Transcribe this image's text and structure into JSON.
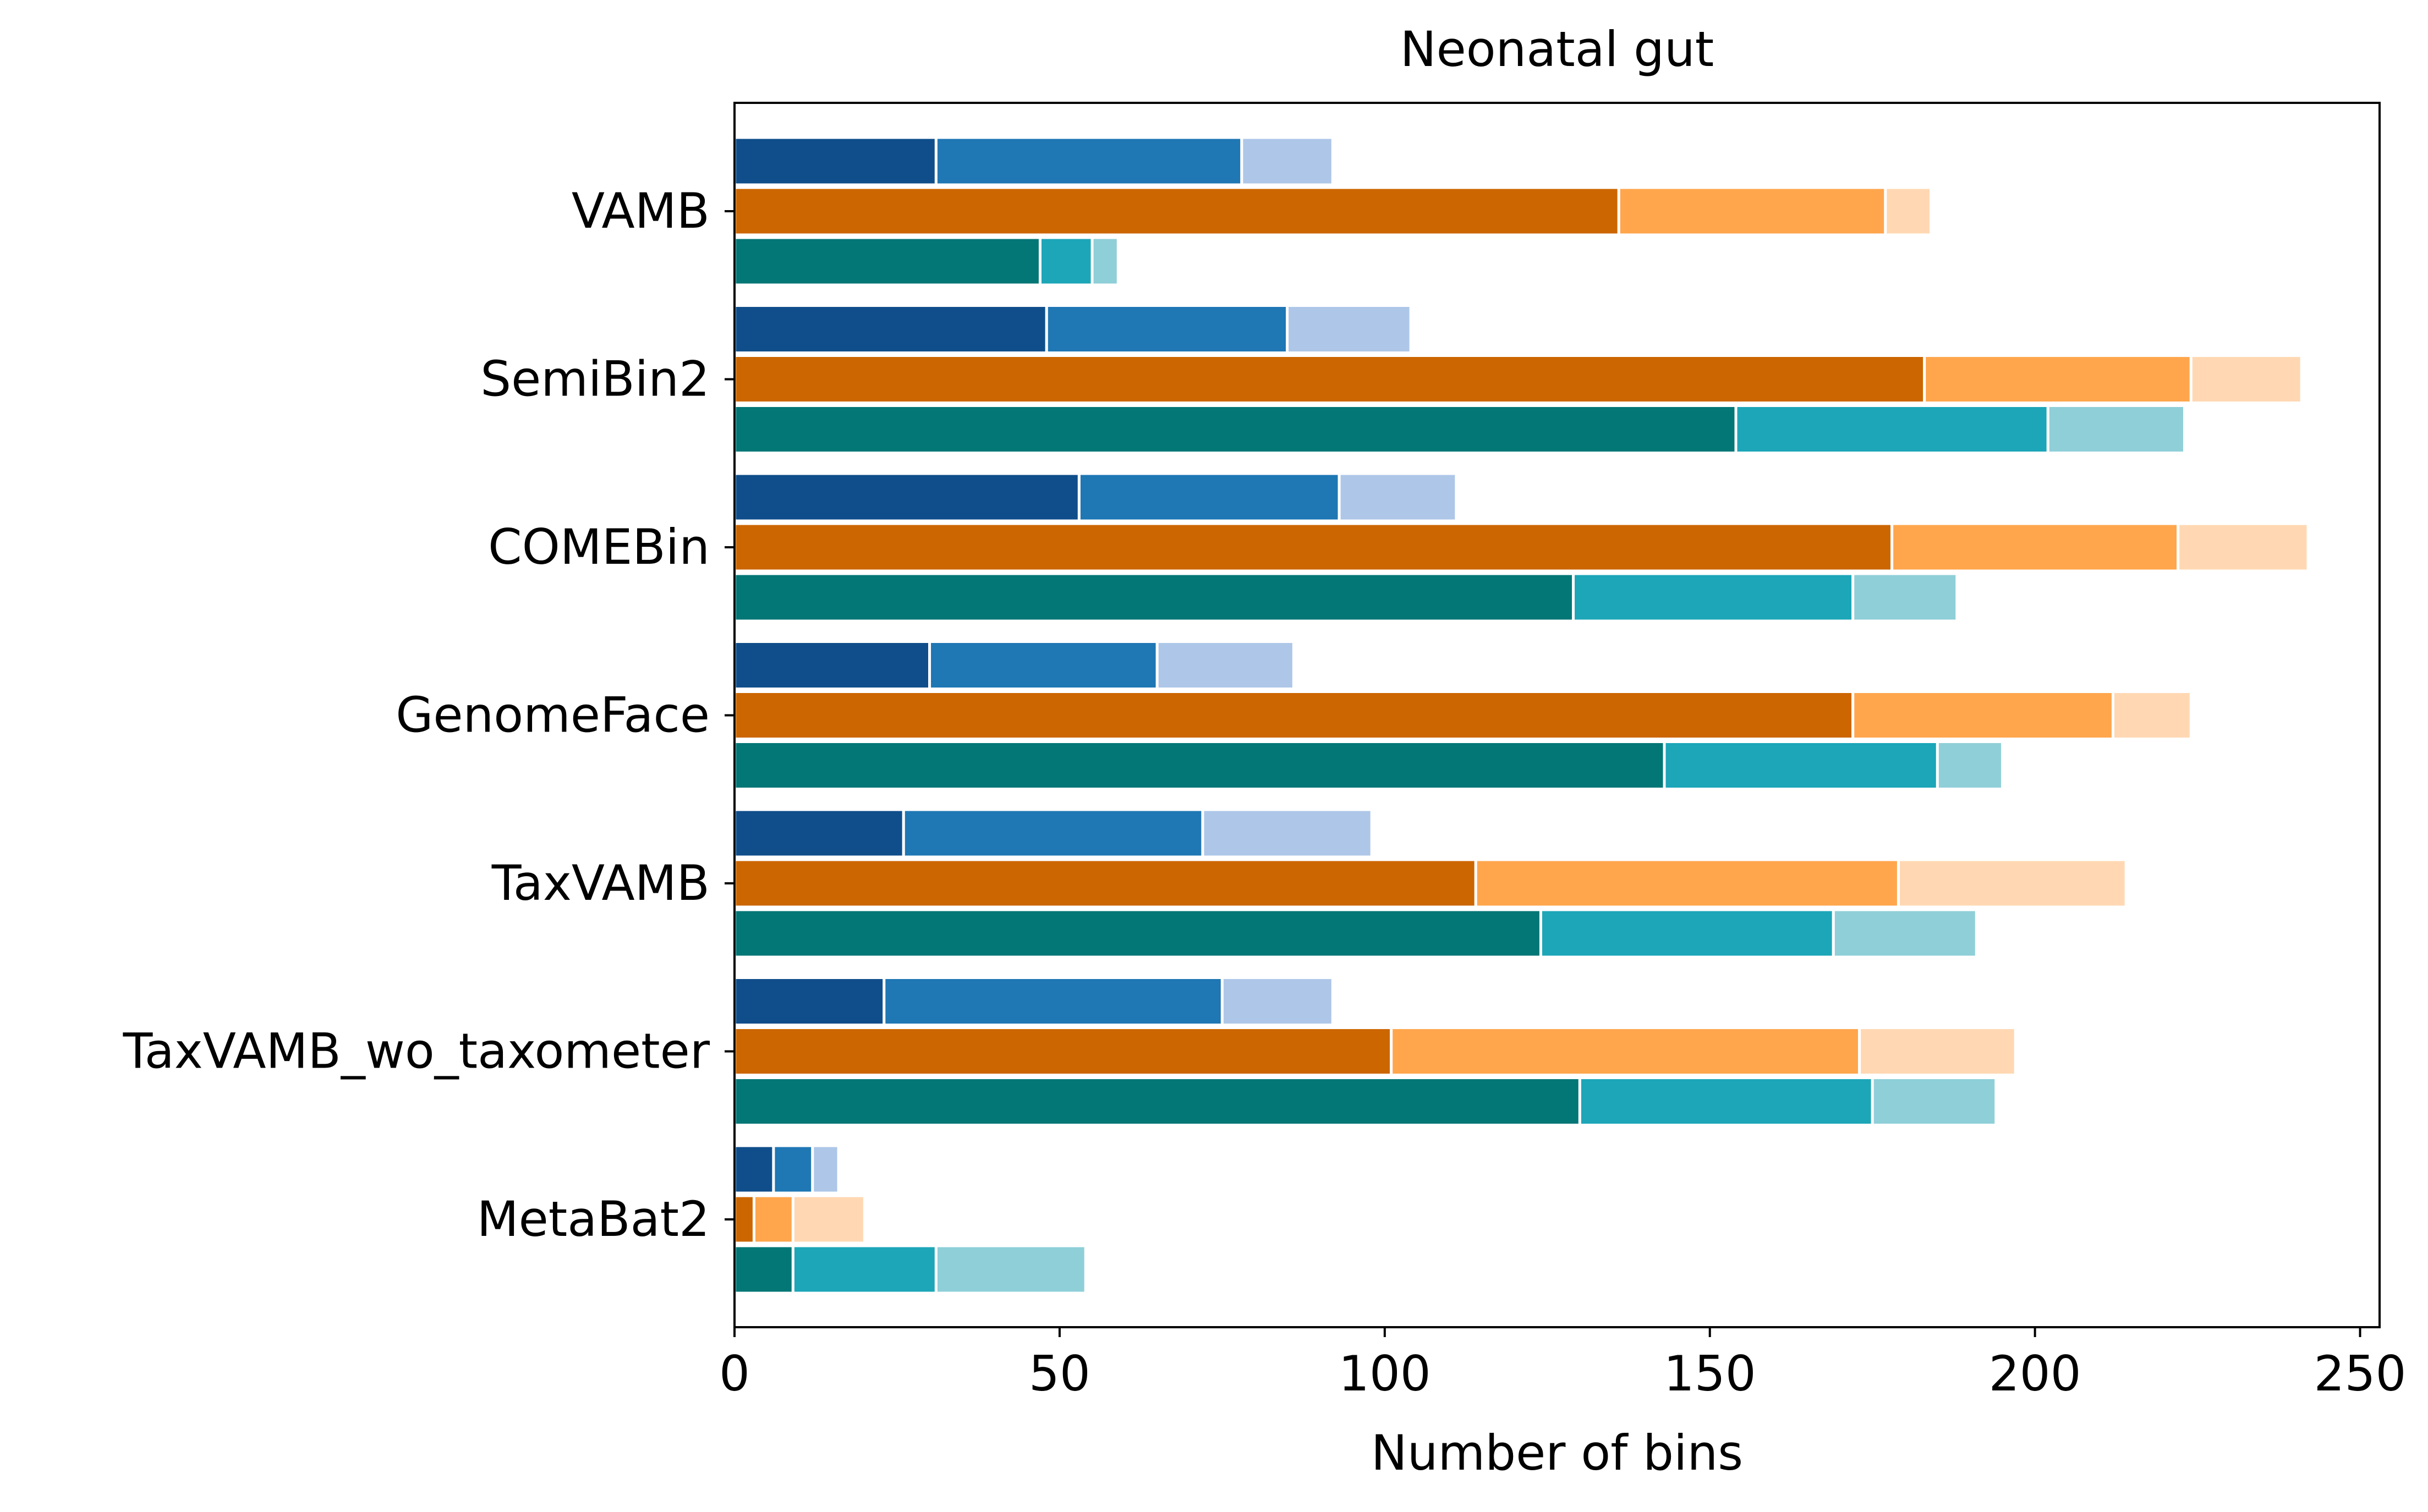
{
  "chart_data": {
    "type": "bar",
    "orientation": "horizontal",
    "stacked": true,
    "title": "Neonatal gut",
    "xlabel": "Number of bins",
    "ylabel": "",
    "xlim": [
      0,
      253
    ],
    "xticks": [
      0,
      50,
      100,
      150,
      200,
      250
    ],
    "grid": false,
    "legend": "none",
    "categories": [
      "VAMB",
      "SemiBin2",
      "COMEBin",
      "GenomeFace",
      "TaxVAMB",
      "TaxVAMB_wo_taxometer",
      "MetaBat2"
    ],
    "groups": [
      {
        "segment_colors": [
          "#104e8b",
          "#1f77b4",
          "#aec7e8"
        ],
        "cumulative": [
          [
            31,
            78,
            92
          ],
          [
            48,
            85,
            104
          ],
          [
            53,
            93,
            111
          ],
          [
            30,
            65,
            86
          ],
          [
            26,
            72,
            98
          ],
          [
            23,
            75,
            92
          ],
          [
            6,
            12,
            16
          ]
        ]
      },
      {
        "segment_colors": [
          "#cc6600",
          "#ffa64d",
          "#ffd8b3"
        ],
        "cumulative": [
          [
            136,
            177,
            184
          ],
          [
            183,
            224,
            241
          ],
          [
            178,
            222,
            242
          ],
          [
            172,
            212,
            224
          ],
          [
            114,
            179,
            214
          ],
          [
            101,
            173,
            197
          ],
          [
            3,
            9,
            20
          ]
        ]
      },
      {
        "segment_colors": [
          "#037676",
          "#1ca6b8",
          "#8fcfd8"
        ],
        "cumulative": [
          [
            47,
            55,
            59
          ],
          [
            154,
            202,
            223
          ],
          [
            129,
            172,
            188
          ],
          [
            143,
            185,
            195
          ],
          [
            124,
            169,
            191
          ],
          [
            130,
            175,
            194
          ],
          [
            9,
            31,
            54
          ]
        ]
      }
    ]
  }
}
